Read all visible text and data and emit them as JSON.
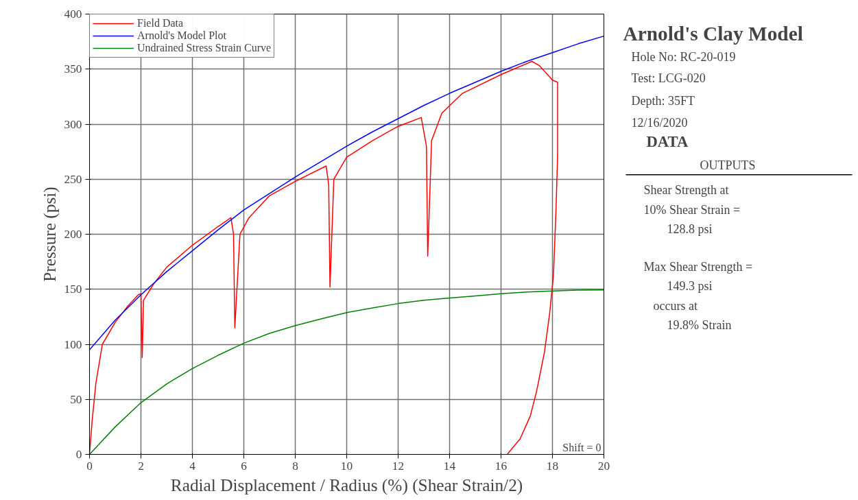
{
  "chart_data": {
    "type": "line",
    "title": "Arnold's Clay Model",
    "xlabel": "Radial Displacement / Radius (%) (Shear Strain/2)",
    "ylabel": "Pressure (psi)",
    "xlim": [
      0,
      20
    ],
    "ylim": [
      0,
      400
    ],
    "xticks": [
      0,
      2,
      4,
      6,
      8,
      10,
      12,
      14,
      16,
      18,
      20
    ],
    "yticks": [
      0,
      50,
      100,
      150,
      200,
      250,
      300,
      350,
      400
    ],
    "grid": true,
    "legend": "top left",
    "line_style": "solid",
    "marker": "none",
    "series": [
      {
        "name": "Field Data",
        "color": "#ff0000",
        "x": [
          0,
          0.1,
          0.25,
          0.5,
          1,
          1.5,
          1.9,
          2.0,
          2.05,
          2.1,
          2.5,
          3,
          4,
          5,
          5.5,
          5.6,
          5.65,
          5.85,
          6.2,
          7,
          8,
          9.2,
          9.3,
          9.35,
          9.5,
          10,
          11,
          12,
          12.9,
          13.1,
          13.15,
          13.3,
          13.7,
          14.5,
          16,
          17.2,
          17.5,
          18.0,
          18.2,
          18.2,
          18.14,
          18.04,
          17.89,
          17.69,
          17.39,
          17.14,
          16.74,
          16.24
        ],
        "values": [
          0,
          30,
          65,
          100,
          120,
          135,
          145,
          146,
          88,
          140,
          155,
          170,
          190,
          207,
          215,
          200,
          115,
          200,
          215,
          235,
          248,
          262,
          245,
          152,
          250,
          270,
          285,
          298,
          306,
          280,
          180,
          285,
          310,
          328,
          345,
          357,
          353,
          340,
          338,
          271,
          224,
          163,
          128,
          93,
          58,
          35,
          14,
          0
        ]
      },
      {
        "name": "Arnold's Model Plot",
        "color": "#0000ff",
        "x": [
          0,
          1,
          2,
          3,
          4,
          5,
          6,
          7,
          8,
          9,
          10,
          11,
          12,
          13,
          14,
          15,
          16,
          17,
          18,
          19,
          20
        ],
        "values": [
          95,
          122,
          145,
          166,
          185,
          204,
          222,
          237,
          252,
          266,
          280,
          293,
          305,
          317,
          328,
          338,
          348,
          357,
          365,
          373,
          380
        ]
      },
      {
        "name": "Undrained Stress Strain Curve",
        "color": "#008000",
        "x": [
          0,
          1,
          2,
          3,
          4,
          5,
          6,
          7,
          8,
          9,
          10,
          11,
          12,
          13,
          14,
          15,
          16,
          17,
          18,
          19,
          20
        ],
        "values": [
          0,
          25,
          47,
          64,
          78,
          90,
          101,
          110,
          117,
          123,
          128.8,
          133,
          137,
          140,
          142,
          144,
          146,
          147.5,
          148.5,
          149.2,
          149.3
        ]
      }
    ],
    "annotations": [
      "Hole No: RC-20-019",
      "Test: LCG-020",
      "Depth: 35FT",
      "12/16/2020",
      "DATA",
      "OUTPUTS",
      "Shear Strength at",
      "10% Shear Strain =",
      "128.8 psi",
      "Max Shear Strength =",
      "149.3 psi",
      "occurs at",
      "19.8% Strain",
      "Shift = 0"
    ]
  }
}
